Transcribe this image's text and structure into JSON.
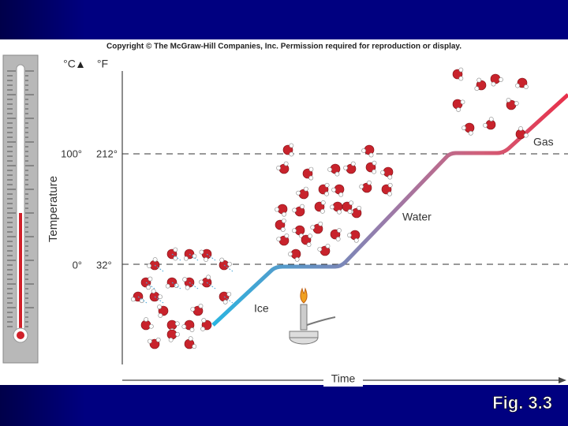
{
  "header": {
    "copyright": "Copyright © The McGraw-Hill Companies, Inc. Permission required for reproduction or display."
  },
  "diagram": {
    "unit_c": "°C",
    "unit_f": "°F",
    "axis_y": "Temperature",
    "axis_x": "Time",
    "ticks": [
      {
        "celsius": "100°",
        "fahrenheit": "212°"
      },
      {
        "celsius": "0°",
        "fahrenheit": "32°"
      }
    ],
    "phases": [
      "Ice",
      "Water",
      "Gas"
    ]
  },
  "footer": {
    "figure": "Fig. 3.3"
  }
}
